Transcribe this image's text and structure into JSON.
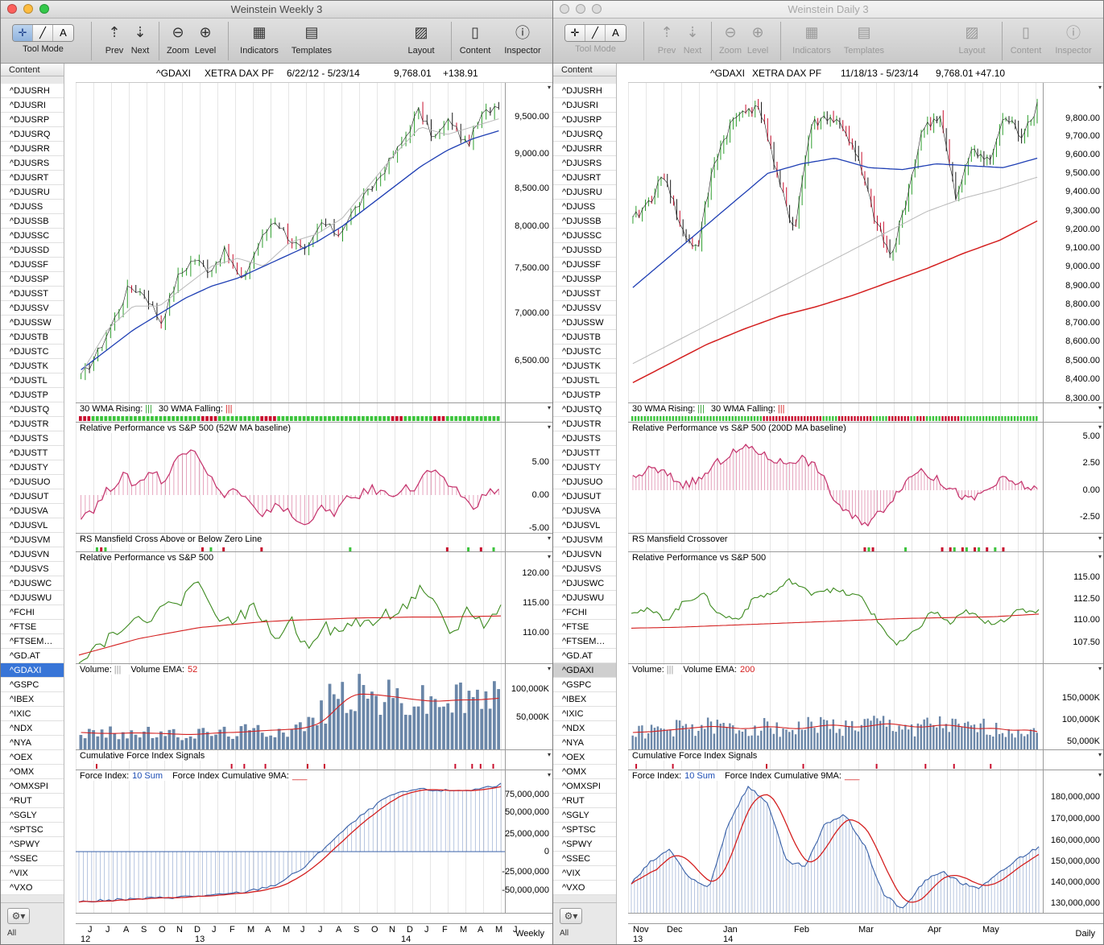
{
  "left": {
    "window_title": "Weinstein Weekly 3",
    "toolbar": {
      "tool_mode": "Tool Mode",
      "prev": "Prev",
      "next": "Next",
      "zoom": "Zoom",
      "level": "Level",
      "indicators": "Indicators",
      "templates": "Templates",
      "layout": "Layout",
      "content": "Content",
      "inspector": "Inspector"
    },
    "sidebar_header": "Content",
    "symbols": [
      "^DJUSRH",
      "^DJUSRI",
      "^DJUSRP",
      "^DJUSRQ",
      "^DJUSRR",
      "^DJUSRS",
      "^DJUSRT",
      "^DJUSRU",
      "^DJUSS",
      "^DJUSSB",
      "^DJUSSC",
      "^DJUSSD",
      "^DJUSSF",
      "^DJUSSP",
      "^DJUSST",
      "^DJUSSV",
      "^DJUSSW",
      "^DJUSTB",
      "^DJUSTC",
      "^DJUSTK",
      "^DJUSTL",
      "^DJUSTP",
      "^DJUSTQ",
      "^DJUSTR",
      "^DJUSTS",
      "^DJUSTT",
      "^DJUSTY",
      "^DJUSUO",
      "^DJUSUT",
      "^DJUSVA",
      "^DJUSVL",
      "^DJUSVM",
      "^DJUSVN",
      "^DJUSVS",
      "^DJUSWC",
      "^DJUSWU",
      "^FCHI",
      "^FTSE",
      "^FTSEM…",
      "^GD.AT",
      "^GDAXI",
      "^GSPC",
      "^IBEX",
      "^IXIC",
      "^NDX",
      "^NYA",
      "^OEX",
      "^OMX",
      "^OMXSPI",
      "^RUT",
      "^SGLY",
      "^SPTSC",
      "^SPWY",
      "^SSEC",
      "^VIX",
      "^VXO"
    ],
    "selected_symbol": "^GDAXI",
    "sidebar_footer": "All",
    "header": {
      "symbol": "^GDAXI",
      "exchange": "XETRA DAX PF",
      "range": "6/22/12 - 5/23/14",
      "price": "9,768.01",
      "change": "+138.91"
    },
    "price_ticks": [
      "9,500.00",
      "9,000.00",
      "8,500.00",
      "8,000.00",
      "7,500.00",
      "7,000.00",
      "6,500.00"
    ],
    "wma": {
      "rising": "30 WMA Rising:",
      "rising_mark": "|||",
      "falling": "30 WMA Falling:",
      "falling_mark": "|||"
    },
    "rp_title": "Relative Performance vs S&P 500 (52W MA baseline)",
    "rp_ticks": [
      "5.00",
      "0.00",
      "-5.00"
    ],
    "rs_title": "RS Mansfield Cross Above or Below Zero Line",
    "rps_title": "Relative Performance vs S&P 500",
    "rps_ticks": [
      "120.00",
      "115.00",
      "110.00"
    ],
    "vol": {
      "label": "Volume:",
      "mark": "|||",
      "ema_label": "Volume EMA:",
      "ema_value": "52"
    },
    "vol_ticks": [
      "100,000K",
      "50,000K"
    ],
    "cfi_title": "Cumulative Force Index Signals",
    "fi": {
      "label": "Force Index:",
      "sum": "10 Sum",
      "cum_label": "Force Index Cumulative 9MA:",
      "cum_mark": "___"
    },
    "fi_ticks": [
      "75,000,000",
      "50,000,000",
      "25,000,000",
      "0",
      "-25,000,000",
      "-50,000,000"
    ],
    "months": [
      "J",
      "J",
      "A",
      "S",
      "O",
      "N",
      "D",
      "J",
      "F",
      "M",
      "A",
      "M",
      "J",
      "J",
      "A",
      "S",
      "O",
      "N",
      "D",
      "J",
      "F",
      "M",
      "A",
      "M",
      "J"
    ],
    "years": [
      "12",
      "13",
      "14"
    ],
    "period": "Weekly"
  },
  "right": {
    "window_title": "Weinstein Daily 3",
    "toolbar": {
      "tool_mode": "Tool Mode",
      "prev": "Prev",
      "next": "Next",
      "zoom": "Zoom",
      "level": "Level",
      "indicators": "Indicators",
      "templates": "Templates",
      "layout": "Layout",
      "content": "Content",
      "inspector": "Inspector"
    },
    "sidebar_header": "Content",
    "symbols": [
      "^DJUSRH",
      "^DJUSRI",
      "^DJUSRP",
      "^DJUSRQ",
      "^DJUSRR",
      "^DJUSRS",
      "^DJUSRT",
      "^DJUSRU",
      "^DJUSS",
      "^DJUSSB",
      "^DJUSSC",
      "^DJUSSD",
      "^DJUSSF",
      "^DJUSSP",
      "^DJUSST",
      "^DJUSSV",
      "^DJUSSW",
      "^DJUSTB",
      "^DJUSTC",
      "^DJUSTK",
      "^DJUSTL",
      "^DJUSTP",
      "^DJUSTQ",
      "^DJUSTR",
      "^DJUSTS",
      "^DJUSTT",
      "^DJUSTY",
      "^DJUSUO",
      "^DJUSUT",
      "^DJUSVA",
      "^DJUSVL",
      "^DJUSVM",
      "^DJUSVN",
      "^DJUSVS",
      "^DJUSWC",
      "^DJUSWU",
      "^FCHI",
      "^FTSE",
      "^FTSEM…",
      "^GD.AT",
      "^GDAXI",
      "^GSPC",
      "^IBEX",
      "^IXIC",
      "^NDX",
      "^NYA",
      "^OEX",
      "^OMX",
      "^OMXSPI",
      "^RUT",
      "^SGLY",
      "^SPTSC",
      "^SPWY",
      "^SSEC",
      "^VIX",
      "^VXO"
    ],
    "selected_symbol": "^GDAXI",
    "sidebar_footer": "All",
    "header": {
      "symbol": "^GDAXI",
      "exchange": "XETRA DAX PF",
      "range": "11/18/13 - 5/23/14",
      "price": "9,768.01",
      "change": "+47.10"
    },
    "price_ticks": [
      "9,800.00",
      "9,700.00",
      "9,600.00",
      "9,500.00",
      "9,400.00",
      "9,300.00",
      "9,200.00",
      "9,100.00",
      "9,000.00",
      "8,900.00",
      "8,800.00",
      "8,700.00",
      "8,600.00",
      "8,500.00",
      "8,400.00",
      "8,300.00"
    ],
    "wma": {
      "rising": "30 WMA Rising:",
      "rising_mark": "|||",
      "falling": "30 WMA Falling:",
      "falling_mark": "|||"
    },
    "rp_title": "Relative Performance vs S&P 500 (200D MA baseline)",
    "rp_ticks": [
      "5.00",
      "2.50",
      "0.00",
      "-2.50"
    ],
    "rs_title": "RS Mansfield Crossover",
    "rps_title": "Relative Performance vs S&P 500",
    "rps_ticks": [
      "115.00",
      "112.50",
      "110.00",
      "107.50"
    ],
    "vol": {
      "label": "Volume:",
      "mark": "|||",
      "ema_label": "Volume EMA:",
      "ema_value": "200"
    },
    "vol_ticks": [
      "150,000K",
      "100,000K",
      "50,000K"
    ],
    "cfi_title": "Cumulative Force Index Signals",
    "fi": {
      "label": "Force Index:",
      "sum": "10 Sum",
      "cum_label": "Force Index Cumulative 9MA:",
      "cum_mark": "___"
    },
    "fi_ticks": [
      "180,000,000",
      "170,000,000",
      "160,000,000",
      "150,000,000",
      "140,000,000",
      "130,000,000"
    ],
    "months": [
      "Nov",
      "Dec",
      "Jan",
      "Feb",
      "Mar",
      "Apr",
      "May"
    ],
    "years": [
      "13",
      "14"
    ],
    "period": "Daily"
  },
  "colors": {
    "up_bar": "#2e9e2e",
    "down_bar": "#c8102e",
    "ma_blue": "#1f3fb4",
    "ma_gray": "#b8b8b8",
    "ma_red": "#d42020",
    "rp_bar": "#c4306a",
    "rs_green": "#3c8a1e",
    "vol_bar": "#6a86a8",
    "fi_blue": "#3860a8"
  },
  "icons": [
    "crosshair-icon",
    "line-tool-icon",
    "text-tool-icon",
    "prev-arrow-icon",
    "next-arrow-icon",
    "zoom-out-icon",
    "zoom-in-icon",
    "indicators-icon",
    "templates-icon",
    "layout-icon",
    "content-icon",
    "inspector-icon",
    "gear-icon"
  ]
}
